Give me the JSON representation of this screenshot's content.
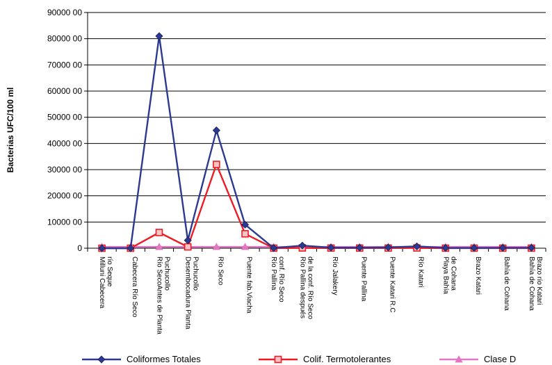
{
  "chart_data": {
    "type": "line",
    "ylabel": "Bacterias UFC/100 ml",
    "ylim": [
      0,
      9000000
    ],
    "yticks": [
      {
        "value": 0,
        "label": "0"
      },
      {
        "value": 1000000,
        "label": "10000 00"
      },
      {
        "value": 2000000,
        "label": "20000 00"
      },
      {
        "value": 3000000,
        "label": "30000 00"
      },
      {
        "value": 4000000,
        "label": "40000 00"
      },
      {
        "value": 5000000,
        "label": "50000 00"
      },
      {
        "value": 6000000,
        "label": "60000 00"
      },
      {
        "value": 7000000,
        "label": "70000 00"
      },
      {
        "value": 8000000,
        "label": "80000 00"
      },
      {
        "value": 9000000,
        "label": "90000 00"
      }
    ],
    "grid": true,
    "legend": "bottom",
    "categories": [
      [
        "Milluni Cabecera",
        "río Seque"
      ],
      [
        "Cabecera Río Seco"
      ],
      [
        "Río SecoAntes de Planta",
        "Puchucollo"
      ],
      [
        "Desembocadura Planta",
        "Puchucollo"
      ],
      [
        "Río Seco"
      ],
      [
        "Puente fab.Viacha"
      ],
      [
        "Río Pallina",
        "conf. Río Seco"
      ],
      [
        "Río Pallina después",
        "de la conf. Río Seco"
      ],
      [
        "Río Jalakery"
      ],
      [
        "Puente Pallina"
      ],
      [
        "Puente Katari R.C"
      ],
      [
        "Río Katari"
      ],
      [
        "Playa Bahía",
        "de Cohana"
      ],
      [
        "Brazo Katari"
      ],
      [
        "Bahía de Cohana"
      ],
      [
        "Bahía de Cohana",
        "Brazo río Katari"
      ]
    ],
    "series": [
      {
        "name": "Coliformes Totales",
        "color": "#2b3990",
        "marker": "diamond",
        "values": [
          0,
          0,
          8100000,
          300000,
          4500000,
          900000,
          5000,
          100000,
          20000,
          20000,
          30000,
          70000,
          10000,
          10000,
          15000,
          15000
        ]
      },
      {
        "name": "Colif. Termotolerantes",
        "color": "#ed1c24",
        "marker": "square",
        "values": [
          0,
          0,
          600000,
          50000,
          3200000,
          550000,
          2000,
          10000,
          5000,
          5000,
          5000,
          10000,
          2000,
          2000,
          2000,
          2000
        ]
      },
      {
        "name": "Clase D",
        "color": "#e377c2",
        "marker": "triangle",
        "values": [
          50000,
          50000,
          50000,
          50000,
          50000,
          50000,
          50000,
          50000,
          50000,
          50000,
          50000,
          50000,
          50000,
          50000,
          50000,
          50000
        ]
      }
    ]
  }
}
